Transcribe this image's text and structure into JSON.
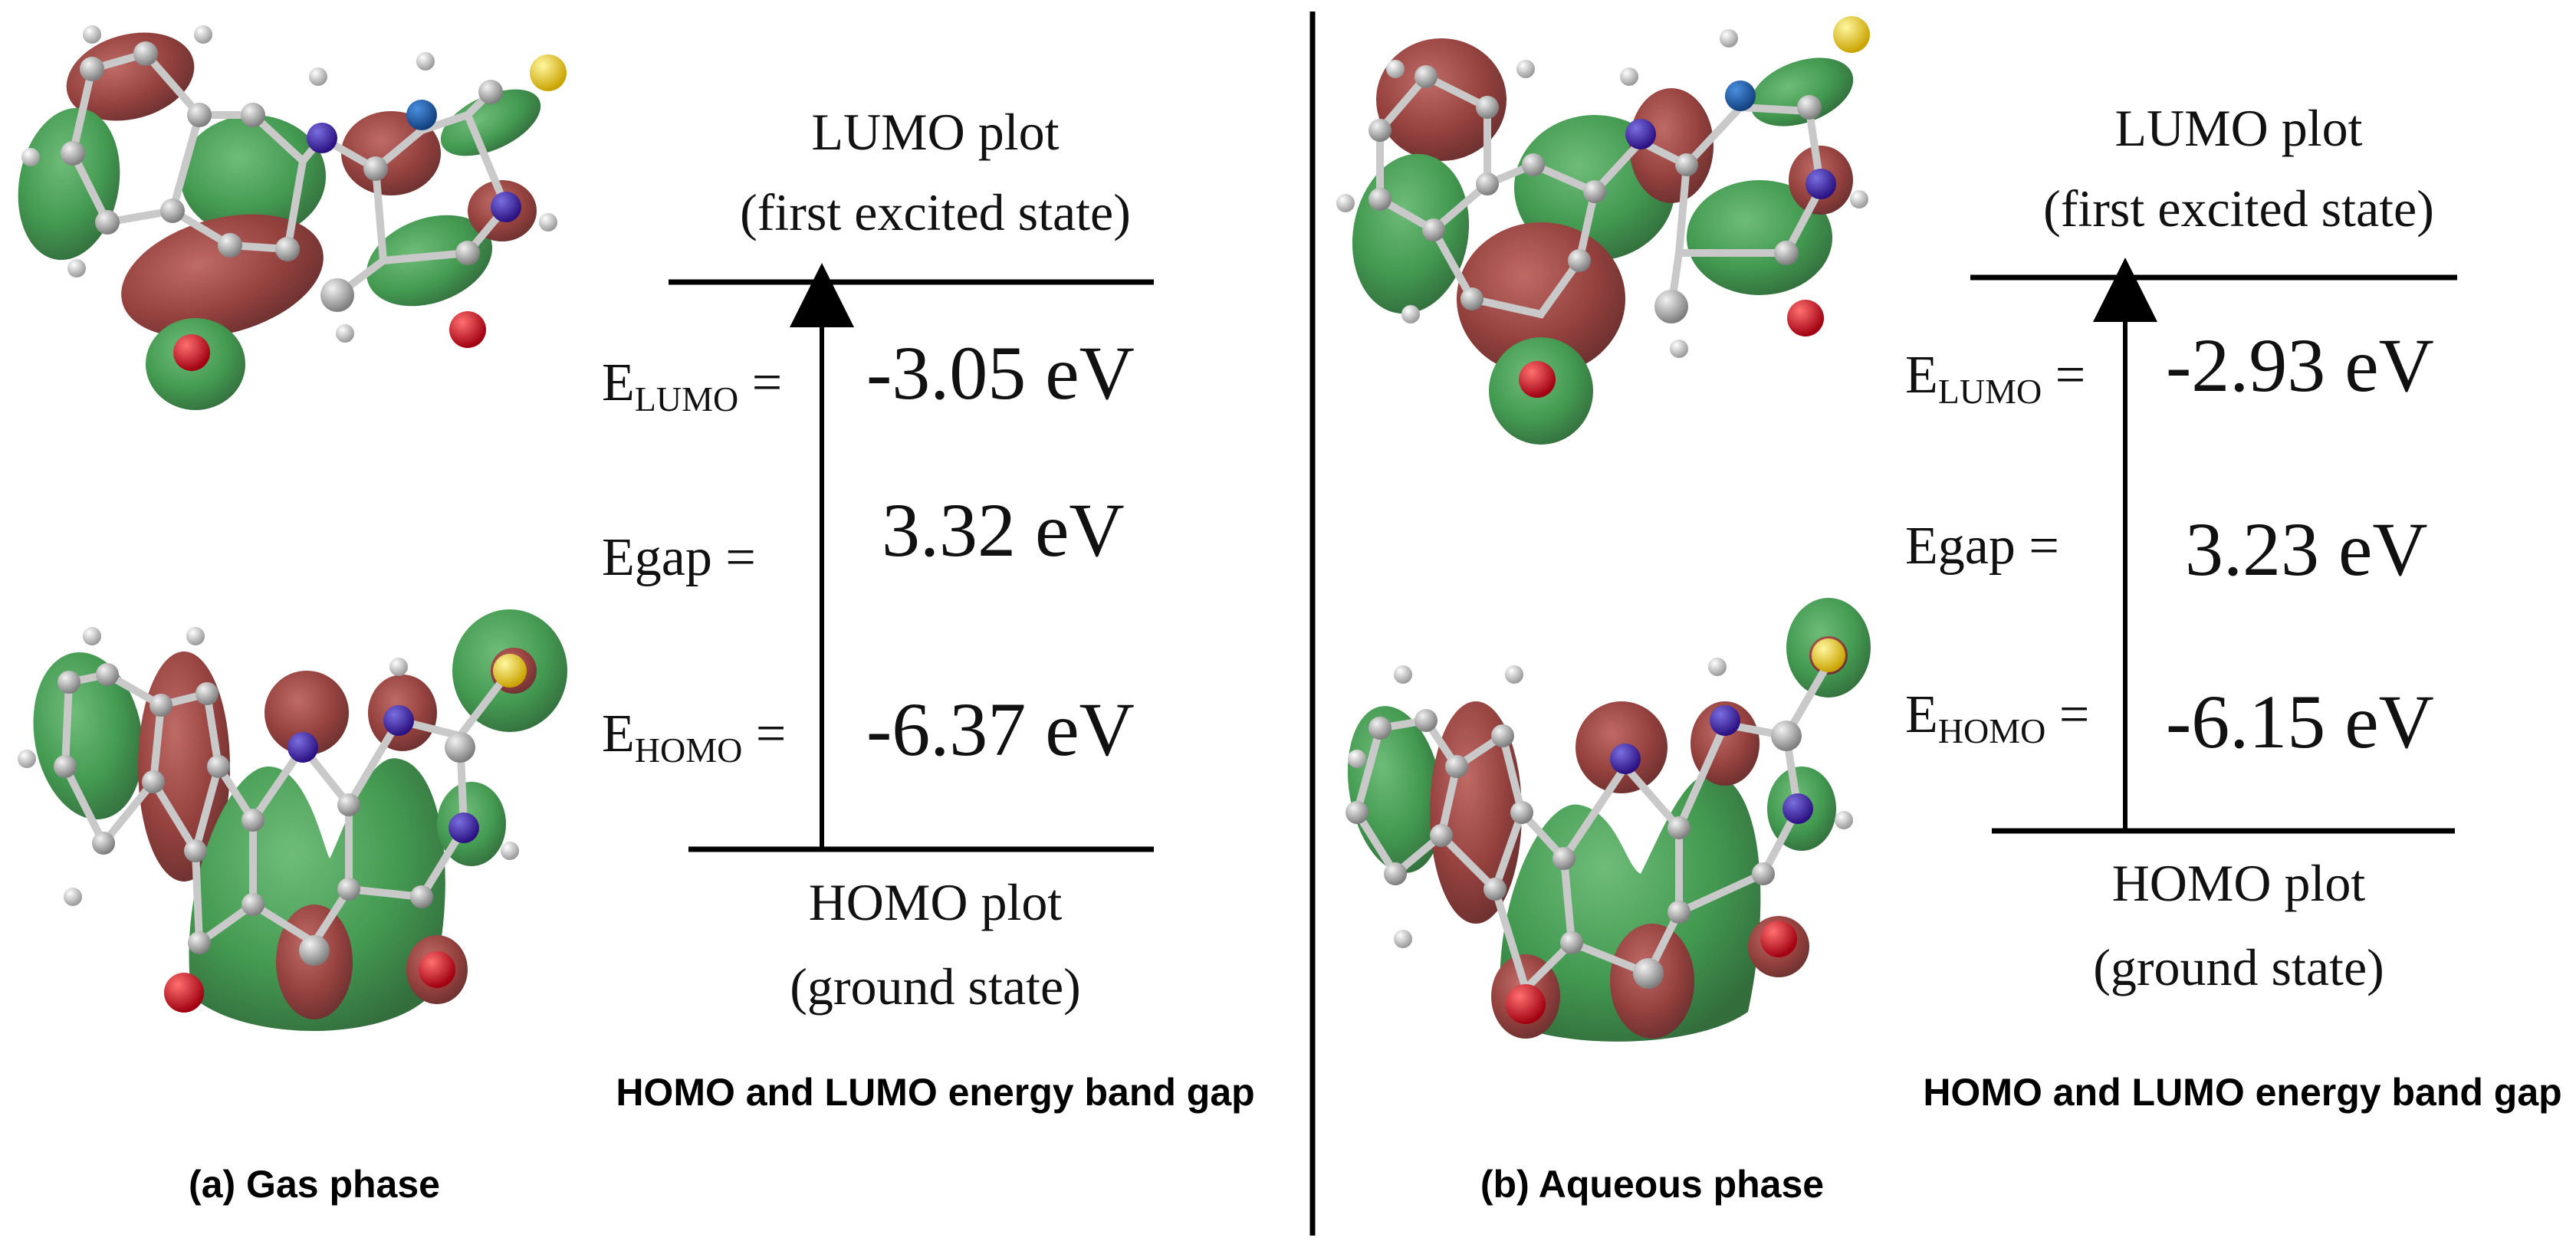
{
  "colors": {
    "orbital_green": "#2f8f3e",
    "orbital_red": "#8a2d2a",
    "atom_carbon": "#a9a9a9",
    "atom_nitrogen": "#3a1fa8",
    "atom_oxygen": "#d0141c",
    "atom_sulfur": "#f2d21e",
    "atom_hydrogen": "#f0f0f0"
  },
  "panels": [
    {
      "caption": "(a) Gas phase",
      "chart_title": "HOMO and LUMO energy band gap",
      "lumo": {
        "label": "LUMO plot",
        "sub": "(first excited state)"
      },
      "homo": {
        "label": "HOMO plot",
        "sub": "(ground state)"
      },
      "e_lumo": {
        "prefix": "E",
        "sub": "LUMO",
        "eq": " =",
        "value": "-3.05 eV"
      },
      "e_gap": {
        "label": "Egap =",
        "value": "3.32 eV"
      },
      "e_homo": {
        "prefix": "E",
        "sub": "HOMO",
        "eq": " =",
        "value": "-6.37 eV"
      }
    },
    {
      "caption": "(b) Aqueous phase",
      "chart_title": "HOMO and LUMO energy band gap",
      "lumo": {
        "label": "LUMO plot",
        "sub": "(first excited state)"
      },
      "homo": {
        "label": "HOMO plot",
        "sub": "(ground state)"
      },
      "e_lumo": {
        "prefix": "E",
        "sub": "LUMO",
        "eq": " =",
        "value": "-2.93 eV"
      },
      "e_gap": {
        "label": "Egap =",
        "value": "3.23 eV"
      },
      "e_homo": {
        "prefix": "E",
        "sub": "HOMO",
        "eq": " =",
        "value": "-6.15 eV"
      }
    }
  ]
}
